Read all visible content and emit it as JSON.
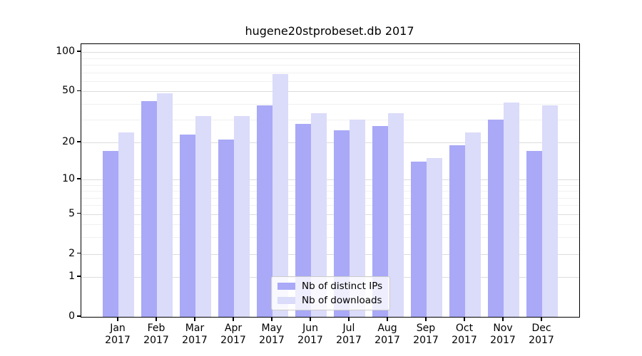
{
  "title": "hugene20stprobeset.db 2017",
  "chart_data": {
    "type": "bar",
    "title": "hugene20stprobeset.db 2017",
    "year_label": "2017",
    "categories": [
      "Jan",
      "Feb",
      "Mar",
      "Apr",
      "May",
      "Jun",
      "Jul",
      "Aug",
      "Sep",
      "Oct",
      "Nov",
      "Dec"
    ],
    "series": [
      {
        "name": "Nb of distinct IPs",
        "color": "#a9a9f7",
        "values": [
          17,
          42,
          23,
          21,
          39,
          28,
          25,
          27,
          14,
          19,
          30,
          17
        ]
      },
      {
        "name": "Nb of downloads",
        "color": "#dbdbfa",
        "values": [
          24,
          48,
          32,
          32,
          68,
          34,
          30,
          34,
          15,
          24,
          41,
          39
        ]
      }
    ],
    "y_axis": {
      "scale": "log1p",
      "ticks": [
        100,
        50,
        20,
        10,
        5,
        2,
        1,
        0
      ],
      "minor_gridlines": [
        3,
        4,
        6,
        7,
        8,
        9,
        30,
        40,
        60,
        70,
        80,
        90
      ],
      "ylim": [
        0,
        115
      ]
    },
    "x_axis": {
      "tick_line2": "2017"
    },
    "legend": {
      "position": "lower-center-inside"
    },
    "grid": true,
    "colors": {
      "major_grid": "#dcdcdc",
      "minor_grid": "#f0f0f0",
      "axis": "#000000",
      "background": "#ffffff"
    }
  }
}
